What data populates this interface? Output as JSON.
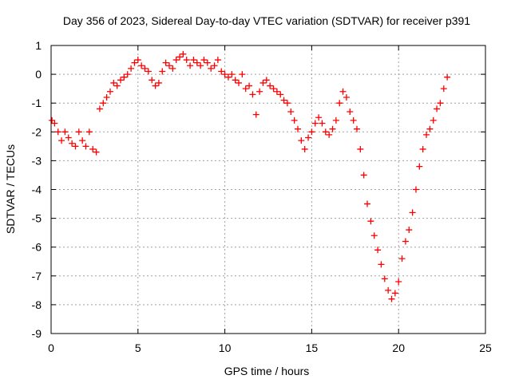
{
  "chart_data": {
    "type": "scatter",
    "title": "Day 356 of 2023, Sidereal Day-to-day VTEC variation (SDTVAR) for receiver p391",
    "xlabel": "GPS time / hours",
    "ylabel": "SDTVAR / TECUs",
    "xlim": [
      0,
      25
    ],
    "ylim": [
      -9,
      1
    ],
    "xticks": [
      0,
      5,
      10,
      15,
      20,
      25
    ],
    "yticks": [
      1,
      0,
      -1,
      -2,
      -3,
      -4,
      -5,
      -6,
      -7,
      -8,
      -9
    ],
    "grid": true,
    "marker": "+",
    "series": [
      {
        "name": "SDTVAR",
        "color": "#ff0000",
        "x": [
          0.05,
          0.2,
          0.4,
          0.6,
          0.8,
          1.0,
          1.2,
          1.4,
          1.6,
          1.8,
          2.0,
          2.2,
          2.4,
          2.6,
          2.8,
          3.0,
          3.2,
          3.4,
          3.6,
          3.8,
          4.0,
          4.2,
          4.4,
          4.6,
          4.8,
          5.0,
          5.2,
          5.4,
          5.6,
          5.8,
          6.0,
          6.2,
          6.4,
          6.6,
          6.8,
          7.0,
          7.2,
          7.4,
          7.6,
          7.8,
          8.0,
          8.2,
          8.4,
          8.6,
          8.8,
          9.0,
          9.2,
          9.4,
          9.6,
          9.8,
          10.0,
          10.2,
          10.4,
          10.6,
          10.8,
          11.0,
          11.2,
          11.4,
          11.6,
          11.8,
          12.0,
          12.2,
          12.4,
          12.6,
          12.8,
          13.0,
          13.2,
          13.4,
          13.6,
          13.8,
          14.0,
          14.2,
          14.4,
          14.6,
          14.8,
          15.0,
          15.2,
          15.4,
          15.6,
          15.8,
          16.0,
          16.2,
          16.4,
          16.6,
          16.8,
          17.0,
          17.2,
          17.4,
          17.6,
          17.8,
          18.0,
          18.2,
          18.4,
          18.6,
          18.8,
          19.0,
          19.2,
          19.4,
          19.6,
          19.8,
          20.0,
          20.2,
          20.4,
          20.6,
          20.8,
          21.0,
          21.2,
          21.4,
          21.6,
          21.8,
          22.0,
          22.2,
          22.4,
          22.6,
          22.8
        ],
        "y": [
          -1.6,
          -1.7,
          -2.0,
          -2.3,
          -2.0,
          -2.2,
          -2.4,
          -2.5,
          -2.0,
          -2.3,
          -2.5,
          -2.0,
          -2.6,
          -2.7,
          -1.2,
          -1.0,
          -0.8,
          -0.6,
          -0.3,
          -0.4,
          -0.2,
          -0.1,
          0.0,
          0.2,
          0.4,
          0.5,
          0.3,
          0.2,
          0.1,
          -0.2,
          -0.4,
          -0.3,
          0.1,
          0.4,
          0.3,
          0.2,
          0.5,
          0.6,
          0.7,
          0.5,
          0.3,
          0.5,
          0.4,
          0.3,
          0.5,
          0.4,
          0.2,
          0.3,
          0.5,
          0.1,
          0.0,
          -0.1,
          0.0,
          -0.2,
          -0.3,
          0.0,
          -0.5,
          -0.4,
          -0.7,
          -1.4,
          -0.6,
          -0.3,
          -0.2,
          -0.4,
          -0.5,
          -0.6,
          -0.7,
          -0.9,
          -1.0,
          -1.3,
          -1.6,
          -1.9,
          -2.3,
          -2.6,
          -2.2,
          -2.0,
          -1.7,
          -1.5,
          -1.7,
          -2.0,
          -2.1,
          -1.9,
          -1.6,
          -1.0,
          -0.6,
          -0.8,
          -1.3,
          -1.6,
          -1.9,
          -2.6,
          -3.5,
          -4.5,
          -5.1,
          -5.6,
          -6.1,
          -6.6,
          -7.1,
          -7.5,
          -7.8,
          -7.6,
          -7.2,
          -6.4,
          -5.8,
          -5.4,
          -4.8,
          -4.0,
          -3.2,
          -2.6,
          -2.1,
          -1.9,
          -1.6,
          -1.2,
          -1.0,
          -0.5,
          -0.1
        ]
      }
    ]
  }
}
